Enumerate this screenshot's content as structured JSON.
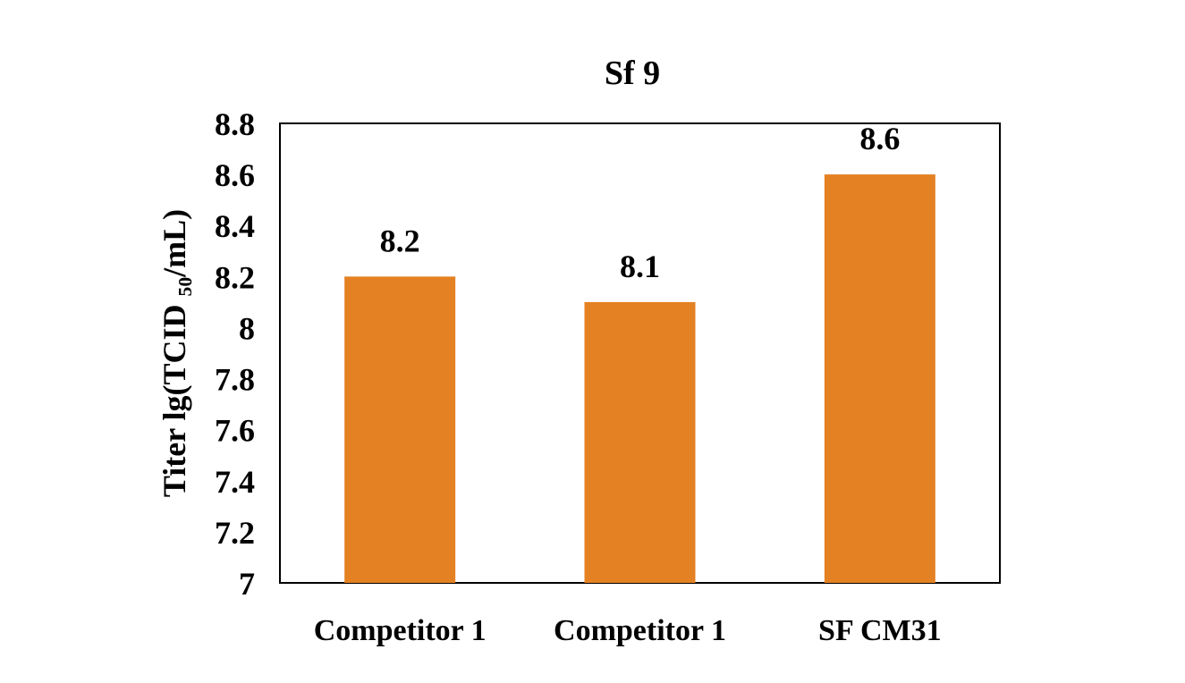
{
  "chart_data": {
    "type": "bar",
    "title": "Sf 9",
    "ylabel": "Titer lg(TCID ₅₀/mL)",
    "xlabel": "",
    "categories": [
      "Competitor 1",
      "Competitor 1",
      "SF CM31"
    ],
    "values": [
      8.2,
      8.1,
      8.6
    ],
    "data_labels": [
      "8.2",
      "8.1",
      "8.6"
    ],
    "ylim": [
      7,
      8.8
    ],
    "yticks": [
      "7",
      "7.2",
      "7.4",
      "7.6",
      "7.8",
      "8",
      "8.2",
      "8.4",
      "8.6",
      "8.8"
    ],
    "grid": false,
    "legend": "none",
    "bar_color": "#E48123"
  }
}
